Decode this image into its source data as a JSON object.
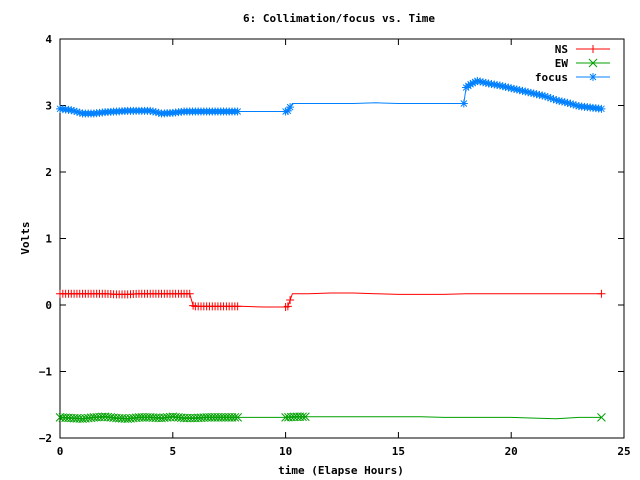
{
  "chart_data": {
    "type": "line",
    "title": "6: Collimation/focus vs. Time",
    "xlabel": "time (Elapse Hours)",
    "ylabel": "Volts",
    "xlim": [
      0,
      25
    ],
    "ylim": [
      -2,
      4
    ],
    "xticks": [
      0,
      5,
      10,
      15,
      20,
      25
    ],
    "yticks": [
      -2,
      -1,
      0,
      1,
      2,
      3,
      4
    ],
    "grid": false,
    "legend_position": "top-right",
    "series": [
      {
        "name": "NS",
        "color": "#ff0000",
        "marker": "plus",
        "x": [
          0,
          0.5,
          1,
          1.5,
          2,
          2.5,
          3,
          3.5,
          4,
          4.5,
          5,
          5.5,
          5.75,
          5.9,
          6,
          6.5,
          7,
          7.5,
          8,
          9,
          10,
          10.1,
          10.3,
          11,
          12,
          13,
          14,
          15,
          16,
          17,
          18,
          19,
          20,
          21,
          22,
          23,
          24
        ],
        "y": [
          0.17,
          0.17,
          0.17,
          0.17,
          0.17,
          0.16,
          0.16,
          0.17,
          0.17,
          0.17,
          0.17,
          0.17,
          0.17,
          -0.01,
          -0.02,
          -0.02,
          -0.02,
          -0.02,
          -0.02,
          -0.03,
          -0.03,
          -0.02,
          0.17,
          0.17,
          0.18,
          0.18,
          0.17,
          0.16,
          0.16,
          0.16,
          0.17,
          0.17,
          0.17,
          0.17,
          0.17,
          0.17,
          0.17
        ]
      },
      {
        "name": "EW",
        "color": "#00a000",
        "marker": "cross",
        "x": [
          0,
          0.5,
          1,
          1.5,
          2,
          2.5,
          3,
          3.5,
          4,
          4.5,
          5,
          5.5,
          6,
          6.5,
          7,
          7.5,
          8,
          9,
          10,
          10.5,
          11,
          12,
          13,
          14,
          15,
          16,
          17,
          18,
          19,
          20,
          21,
          22,
          23,
          24
        ],
        "y": [
          -1.69,
          -1.7,
          -1.71,
          -1.69,
          -1.68,
          -1.7,
          -1.71,
          -1.69,
          -1.69,
          -1.7,
          -1.68,
          -1.7,
          -1.7,
          -1.69,
          -1.69,
          -1.69,
          -1.69,
          -1.69,
          -1.69,
          -1.68,
          -1.68,
          -1.68,
          -1.68,
          -1.68,
          -1.68,
          -1.68,
          -1.69,
          -1.69,
          -1.69,
          -1.69,
          -1.7,
          -1.71,
          -1.69,
          -1.69
        ]
      },
      {
        "name": "focus",
        "color": "#0080ff",
        "marker": "star",
        "x": [
          0,
          0.5,
          1,
          1.5,
          2,
          2.5,
          3,
          3.5,
          4,
          4.5,
          5,
          5.5,
          6,
          6.5,
          7,
          7.5,
          8,
          9,
          10,
          10.1,
          10.3,
          11,
          12,
          13,
          14,
          15,
          16,
          17,
          17.9,
          18,
          18.2,
          18.5,
          19,
          19.5,
          20,
          20.5,
          21,
          21.5,
          22,
          22.5,
          23,
          23.5,
          24
        ],
        "y": [
          2.95,
          2.93,
          2.88,
          2.88,
          2.9,
          2.91,
          2.92,
          2.92,
          2.92,
          2.88,
          2.89,
          2.91,
          2.91,
          2.91,
          2.91,
          2.91,
          2.91,
          2.91,
          2.91,
          2.92,
          3.03,
          3.03,
          3.03,
          3.03,
          3.04,
          3.03,
          3.03,
          3.03,
          3.03,
          3.27,
          3.32,
          3.37,
          3.33,
          3.3,
          3.26,
          3.22,
          3.18,
          3.14,
          3.08,
          3.04,
          2.99,
          2.97,
          2.95
        ]
      }
    ]
  }
}
